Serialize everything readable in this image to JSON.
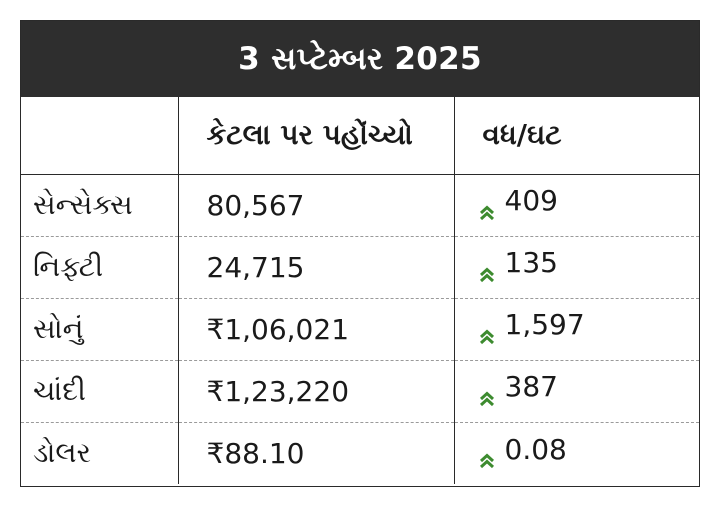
{
  "title": "3 સપ્ટેમ્બર 2025",
  "columns": [
    "",
    "કેટલા પર પહોંચ્યો",
    "વધ/ઘટ"
  ],
  "rows": [
    {
      "name": "સેન્સેક્સ",
      "value": "80,567",
      "change": "409",
      "direction": "up"
    },
    {
      "name": "નિફ્ટી",
      "value": "24,715",
      "change": "135",
      "direction": "up"
    },
    {
      "name": "સોનું",
      "value": "₹1,06,021",
      "change": "1,597",
      "direction": "up"
    },
    {
      "name": "ચાંદી",
      "value": "₹1,23,220",
      "change": "387",
      "direction": "up"
    },
    {
      "name": "ડોલર",
      "value": "₹88.10",
      "change": "0.08",
      "direction": "up"
    }
  ],
  "colors": {
    "header_bg": "#2e2e2e",
    "header_text": "#ffffff",
    "up_arrow": "#3d8b2f"
  },
  "icons": {
    "change_up": "double-chevron-up-icon"
  }
}
